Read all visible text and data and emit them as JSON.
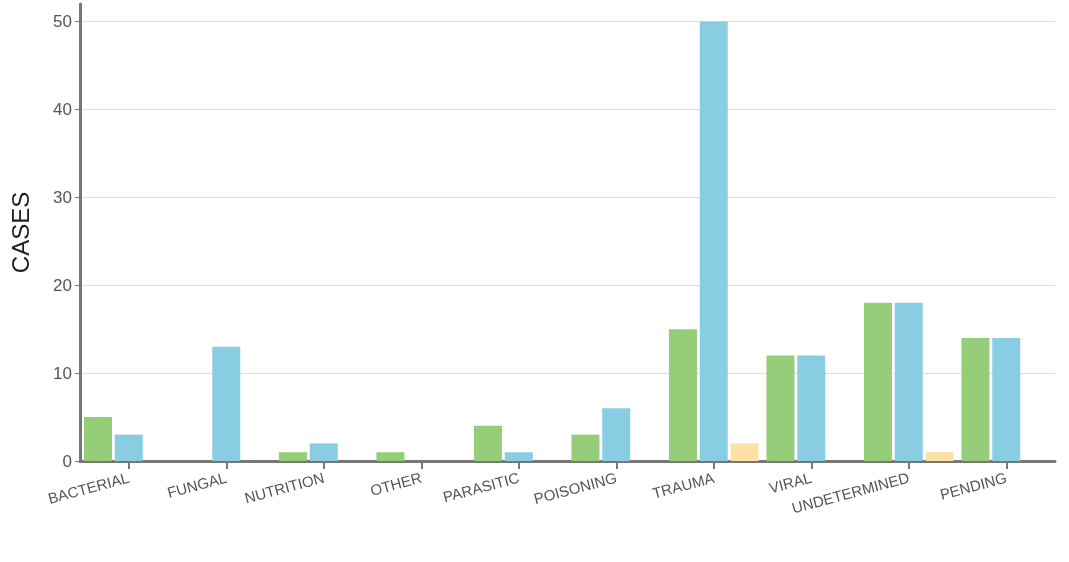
{
  "chart_data": {
    "type": "bar",
    "ylabel": "CASES",
    "categories": [
      "BACTERIAL",
      "FUNGAL",
      "NUTRITION",
      "OTHER",
      "PARASITIC",
      "POISONING",
      "TRAUMA",
      "VIRAL",
      "UNDETERMINED",
      "PENDING"
    ],
    "series": [
      {
        "color": "#96cd78",
        "values": [
          5,
          0,
          1,
          1,
          4,
          3,
          15,
          12,
          18,
          14
        ]
      },
      {
        "color": "#89cde3",
        "values": [
          3,
          13,
          2,
          0,
          1,
          6,
          50,
          12,
          18,
          14
        ]
      },
      {
        "color": "#fde0a5",
        "values": [
          0,
          0,
          0,
          0,
          0,
          0,
          2,
          0,
          1,
          0
        ]
      }
    ],
    "ylim": [
      0,
      52
    ],
    "yticks": [
      0,
      10,
      20,
      30,
      40,
      50
    ],
    "grid": "y"
  }
}
